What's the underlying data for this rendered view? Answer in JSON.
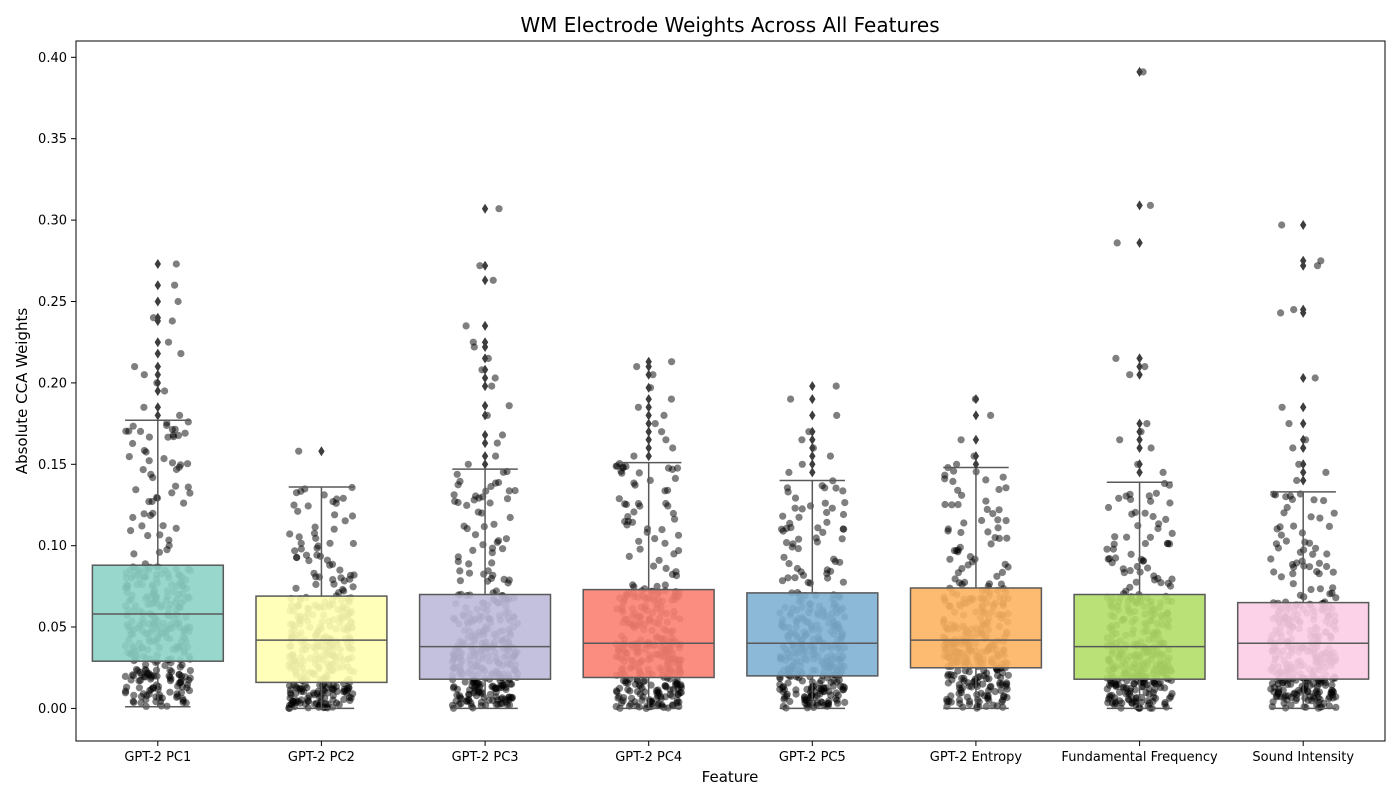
{
  "chart_data": {
    "type": "box",
    "title": "WM Electrode Weights Across All Features",
    "xlabel": "Feature",
    "ylabel": "Absolute CCA Weights",
    "ylim": [
      -0.02,
      0.41
    ],
    "yticks": [
      "0.00",
      "0.05",
      "0.10",
      "0.15",
      "0.20",
      "0.25",
      "0.30",
      "0.35",
      "0.40"
    ],
    "grid": false,
    "legend": "none",
    "categories": [
      "GPT-2 PC1",
      "GPT-2 PC2",
      "GPT-2 PC3",
      "GPT-2 PC4",
      "GPT-2 PC5",
      "GPT-2 Entropy",
      "Fundamental Frequency",
      "Sound Intensity"
    ],
    "colors": [
      "#8dd3c7",
      "#ffffb3",
      "#bebada",
      "#fb8072",
      "#80b1d3",
      "#fdb462",
      "#b3de69",
      "#fccde5"
    ],
    "boxes": [
      {
        "whisker_low": 0.001,
        "q1": 0.029,
        "median": 0.058,
        "q3": 0.088,
        "whisker_high": 0.177,
        "outliers": [
          0.18,
          0.185,
          0.195,
          0.2,
          0.205,
          0.21,
          0.218,
          0.225,
          0.238,
          0.24,
          0.25,
          0.26,
          0.273
        ]
      },
      {
        "whisker_low": 0.0,
        "q1": 0.016,
        "median": 0.042,
        "q3": 0.069,
        "whisker_high": 0.136,
        "outliers": [
          0.158
        ]
      },
      {
        "whisker_low": 0.0,
        "q1": 0.018,
        "median": 0.038,
        "q3": 0.07,
        "whisker_high": 0.147,
        "outliers": [
          0.15,
          0.155,
          0.163,
          0.168,
          0.18,
          0.186,
          0.198,
          0.203,
          0.208,
          0.215,
          0.222,
          0.225,
          0.235,
          0.263,
          0.272,
          0.307
        ]
      },
      {
        "whisker_low": 0.0,
        "q1": 0.019,
        "median": 0.04,
        "q3": 0.073,
        "whisker_high": 0.151,
        "outliers": [
          0.155,
          0.16,
          0.165,
          0.17,
          0.175,
          0.18,
          0.185,
          0.19,
          0.197,
          0.205,
          0.21,
          0.213
        ]
      },
      {
        "whisker_low": 0.0,
        "q1": 0.02,
        "median": 0.04,
        "q3": 0.071,
        "whisker_high": 0.14,
        "outliers": [
          0.145,
          0.15,
          0.155,
          0.16,
          0.165,
          0.17,
          0.18,
          0.19,
          0.198
        ]
      },
      {
        "whisker_low": 0.0,
        "q1": 0.025,
        "median": 0.042,
        "q3": 0.074,
        "whisker_high": 0.148,
        "outliers": [
          0.15,
          0.155,
          0.165,
          0.18,
          0.19
        ]
      },
      {
        "whisker_low": 0.0,
        "q1": 0.018,
        "median": 0.038,
        "q3": 0.07,
        "whisker_high": 0.139,
        "outliers": [
          0.145,
          0.15,
          0.16,
          0.165,
          0.17,
          0.175,
          0.205,
          0.21,
          0.215,
          0.286,
          0.309,
          0.391
        ]
      },
      {
        "whisker_low": 0.0,
        "q1": 0.018,
        "median": 0.04,
        "q3": 0.065,
        "whisker_high": 0.133,
        "outliers": [
          0.14,
          0.145,
          0.15,
          0.16,
          0.165,
          0.175,
          0.185,
          0.203,
          0.243,
          0.245,
          0.272,
          0.275,
          0.297
        ]
      }
    ]
  }
}
